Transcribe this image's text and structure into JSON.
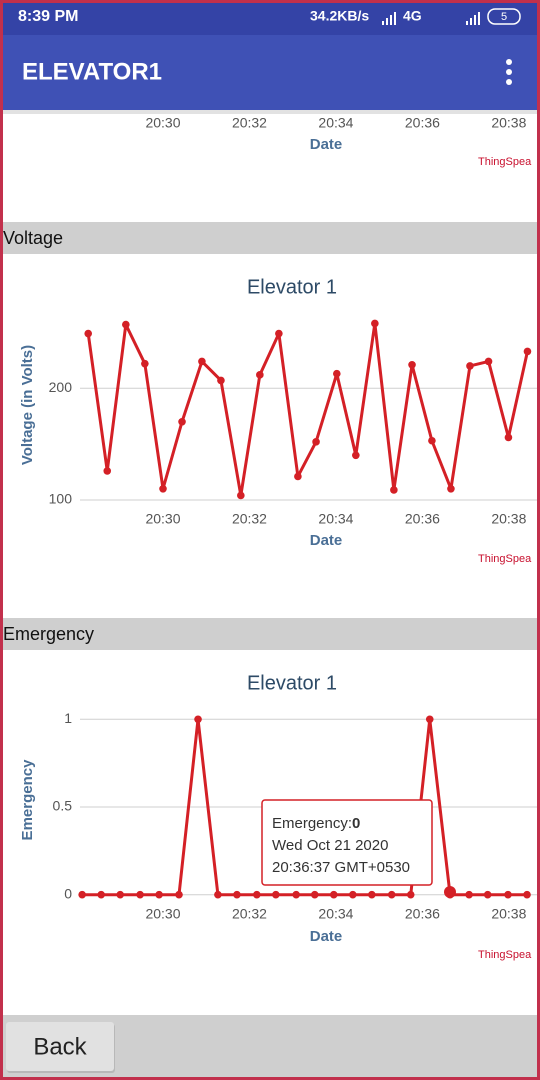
{
  "status_bar": {
    "time": "8:39 PM",
    "network": "34.2KB/s",
    "signal": "4G",
    "battery": "5"
  },
  "app_bar": {
    "title": "ELEVATOR1"
  },
  "sections": [
    "Voltage",
    "Emergency"
  ],
  "chart_data": [
    {
      "type": "line",
      "x_label": "Date",
      "credit": "ThingSpea",
      "xlim": [
        28.08,
        38.72
      ],
      "xticks": [
        {
          "value": 30,
          "label": "20:30"
        },
        {
          "value": 32,
          "label": "20:32"
        },
        {
          "value": 34,
          "label": "20:34"
        },
        {
          "value": 36,
          "label": "20:36"
        },
        {
          "value": 38,
          "label": "20:38"
        }
      ]
    },
    {
      "type": "line",
      "title": "Elevator 1",
      "x_label": "Date",
      "y_label": "Voltage (in Volts)",
      "credit": "ThingSpea",
      "xlim": [
        28.08,
        38.72
      ],
      "xticks": [
        {
          "value": 30,
          "label": "20:30"
        },
        {
          "value": 32,
          "label": "20:32"
        },
        {
          "value": 34,
          "label": "20:34"
        },
        {
          "value": 36,
          "label": "20:36"
        },
        {
          "value": 38,
          "label": "20:38"
        }
      ],
      "ylim": [
        91,
        279
      ],
      "yticks": [
        100,
        200
      ],
      "grid": true,
      "color": "#d42026",
      "x": [
        28.27,
        28.71,
        29.14,
        29.58,
        30.0,
        30.44,
        30.9,
        31.34,
        31.8,
        32.24,
        32.68,
        33.12,
        33.54,
        34.02,
        34.46,
        34.9,
        35.34,
        35.76,
        36.22,
        36.66,
        37.1,
        37.53,
        37.99,
        38.43
      ],
      "values": [
        249,
        126,
        257,
        222,
        110,
        170,
        224,
        207,
        104,
        212,
        249,
        121,
        152,
        213,
        140,
        258,
        109,
        221,
        153,
        110,
        220,
        224,
        156,
        233
      ]
    },
    {
      "type": "line",
      "title": "Elevator 1",
      "x_label": "Date",
      "y_label": "Emergency",
      "credit": "ThingSpea",
      "xlim": [
        28.08,
        38.72
      ],
      "xticks": [
        {
          "value": 30,
          "label": "20:30"
        },
        {
          "value": 32,
          "label": "20:32"
        },
        {
          "value": 34,
          "label": "20:34"
        },
        {
          "value": 36,
          "label": "20:36"
        },
        {
          "value": 38,
          "label": "20:38"
        }
      ],
      "ylim": [
        -0.03,
        1.11
      ],
      "yticks": [
        0,
        0.5,
        1
      ],
      "grid": true,
      "color": "#d42026",
      "x": [
        28.13,
        28.57,
        29.01,
        29.47,
        29.91,
        30.37,
        30.81,
        31.27,
        31.71,
        32.17,
        32.61,
        33.08,
        33.51,
        33.95,
        34.39,
        34.83,
        35.29,
        35.73,
        36.17,
        36.64,
        37.08,
        37.51,
        37.98,
        38.42
      ],
      "values": [
        0,
        0,
        0,
        0,
        0,
        0,
        1,
        0,
        0,
        0,
        0,
        0,
        0,
        0,
        0,
        0,
        0,
        0,
        1,
        0,
        0,
        0,
        0,
        0
      ]
    }
  ],
  "tooltip": {
    "label": "Emergency:",
    "value": 0,
    "date": "Wed Oct 21 2020",
    "time": "20:36:37 GMT+0530"
  },
  "button": "Back"
}
